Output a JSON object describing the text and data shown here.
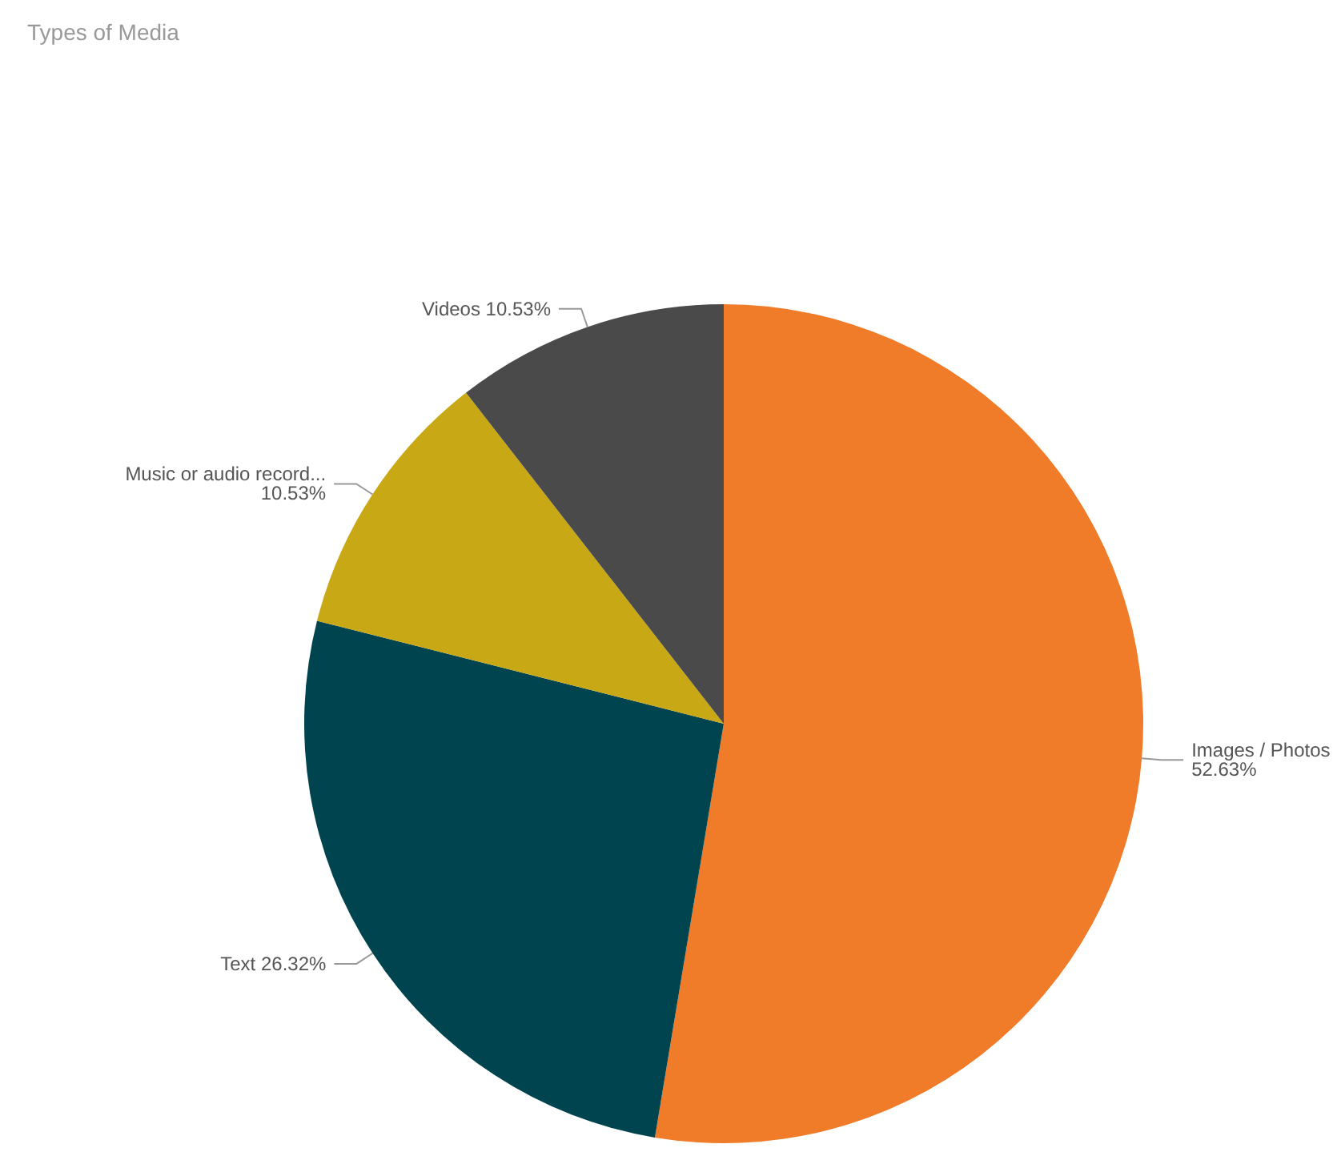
{
  "chart_data": {
    "type": "pie",
    "title": "Types of Media",
    "categories": [
      "Images / Photos",
      "Text",
      "Music or audio record...",
      "Videos"
    ],
    "values": [
      52.63,
      26.32,
      10.53,
      10.53
    ],
    "colors": [
      "#f07b29",
      "#00444f",
      "#c8a814",
      "#4a4a4a"
    ],
    "value_labels": [
      "52.63%",
      "26.32%",
      "10.53%",
      "10.53%"
    ],
    "legend": false
  }
}
